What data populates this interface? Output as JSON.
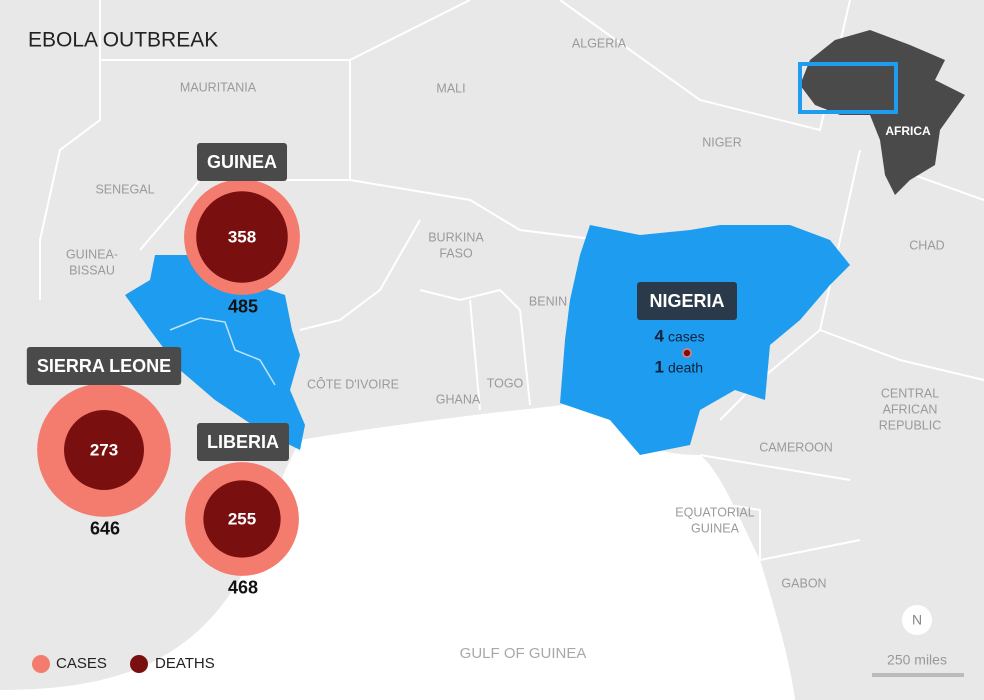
{
  "title": "EBOLA OUTBREAK",
  "countries": [
    {
      "name": "GUINEA",
      "deaths": 358,
      "cases": 485
    },
    {
      "name": "SIERRA LEONE",
      "deaths": 273,
      "cases": 646
    },
    {
      "name": "LIBERIA",
      "deaths": 255,
      "cases": 468
    }
  ],
  "nigeria": {
    "name": "NIGERIA",
    "cases": 4,
    "cases_label": "cases",
    "deaths": 1,
    "deaths_label": "death"
  },
  "map_labels": [
    [
      "ALGERIA"
    ],
    [
      "MAURITANIA"
    ],
    [
      "MALI"
    ],
    [
      "NIGER"
    ],
    [
      "SENEGAL"
    ],
    [
      "GUINEA-",
      "BISSAU"
    ],
    [
      "BURKINA",
      "FASO"
    ],
    [
      "BENIN"
    ],
    [
      "CHAD"
    ],
    [
      "CÔTE D'IVOIRE"
    ],
    [
      "TOGO"
    ],
    [
      "GHANA"
    ],
    [
      "CENTRAL",
      "AFRICAN",
      "REPUBLIC"
    ],
    [
      "CAMEROON"
    ],
    [
      "EQUATORIAL",
      "GUINEA"
    ],
    [
      "GABON"
    ]
  ],
  "sea_label": "GULF OF GUINEA",
  "inset_label": "AFRICA",
  "compass": "N",
  "scale": "250 miles",
  "legend": [
    "CASES",
    "DEATHS"
  ]
}
